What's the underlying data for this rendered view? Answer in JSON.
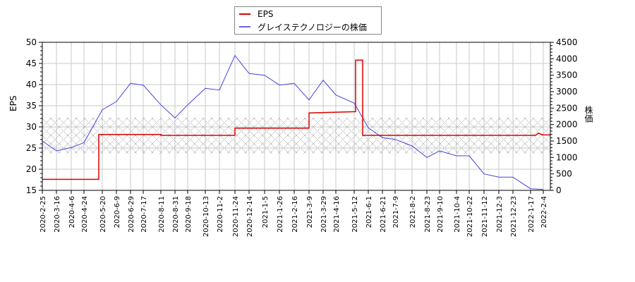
{
  "legend": {
    "items": [
      {
        "label": "EPS",
        "color": "#dd0000"
      },
      {
        "label": "グレイステクノロジーの株価",
        "color": "#4444dd"
      }
    ]
  },
  "axes": {
    "left_label": "EPS",
    "right_label": "株価",
    "left_ticks": [
      15,
      20,
      25,
      30,
      35,
      40,
      45,
      50
    ],
    "right_ticks": [
      0,
      500,
      1000,
      1500,
      2000,
      2500,
      3000,
      3500,
      4000,
      4500
    ]
  },
  "chart_data": {
    "type": "line",
    "title": "",
    "xlabel": "",
    "ylabel": "EPS",
    "y2label": "株価",
    "ylim": [
      15,
      50
    ],
    "y2lim": [
      0,
      4500
    ],
    "grid": true,
    "legend_position": "top-center",
    "hatched_band": {
      "ymin": 23.7,
      "ymax": 32.2,
      "axis": "left"
    },
    "x_tick_labels": [
      "2020-2-25",
      "2020-3-16",
      "2020-4-6",
      "2020-4-24",
      "2020-5-20",
      "2020-6-9",
      "2020-6-29",
      "2020-7-17",
      "2020-8-11",
      "2020-8-31",
      "2020-9-18",
      "2020-10-13",
      "2020-11-2",
      "2020-11-24",
      "2020-12-14",
      "2021-1-5",
      "2021-1-26",
      "2021-2-16",
      "2021-3-9",
      "2021-3-29",
      "2021-4-16",
      "2021-5-12",
      "2021-6-1",
      "2021-6-21",
      "2021-7-9",
      "2021-8-2",
      "2021-8-23",
      "2021-9-10",
      "2021-10-4",
      "2021-10-22",
      "2021-11-12",
      "2021-12-3",
      "2021-12-23",
      "2022-1-17",
      "2022-2-4"
    ],
    "series": [
      {
        "name": "EPS",
        "axis": "left",
        "color": "#dd0000",
        "points": [
          [
            "2020-2-25",
            17.6
          ],
          [
            "2020-5-15",
            17.6
          ],
          [
            "2020-5-15",
            28.2
          ],
          [
            "2020-8-11",
            28.2
          ],
          [
            "2020-8-11",
            28.0
          ],
          [
            "2020-11-24",
            28.0
          ],
          [
            "2020-11-24",
            29.7
          ],
          [
            "2021-3-9",
            29.7
          ],
          [
            "2021-3-9",
            33.3
          ],
          [
            "2021-5-14",
            33.6
          ],
          [
            "2021-5-14",
            45.8
          ],
          [
            "2021-5-24",
            45.8
          ],
          [
            "2021-5-24",
            28.0
          ],
          [
            "2022-1-24",
            28.0
          ],
          [
            "2022-1-28",
            28.5
          ],
          [
            "2022-2-4",
            28.1
          ],
          [
            "2022-2-14",
            28.1
          ]
        ]
      },
      {
        "name": "グレイステクノロジーの株価",
        "axis": "right",
        "color": "#4444dd",
        "points": [
          [
            "2020-2-25",
            1500
          ],
          [
            "2020-3-16",
            1200
          ],
          [
            "2020-4-6",
            1300
          ],
          [
            "2020-4-24",
            1450
          ],
          [
            "2020-5-20",
            2450
          ],
          [
            "2020-6-9",
            2700
          ],
          [
            "2020-6-29",
            3250
          ],
          [
            "2020-7-17",
            3200
          ],
          [
            "2020-8-11",
            2600
          ],
          [
            "2020-8-31",
            2200
          ],
          [
            "2020-9-18",
            2600
          ],
          [
            "2020-10-13",
            3100
          ],
          [
            "2020-11-2",
            3050
          ],
          [
            "2020-11-24",
            4100
          ],
          [
            "2020-12-14",
            3550
          ],
          [
            "2021-1-5",
            3500
          ],
          [
            "2021-1-26",
            3200
          ],
          [
            "2021-2-16",
            3250
          ],
          [
            "2021-3-9",
            2750
          ],
          [
            "2021-3-29",
            3350
          ],
          [
            "2021-4-16",
            2900
          ],
          [
            "2021-5-12",
            2650
          ],
          [
            "2021-6-1",
            1900
          ],
          [
            "2021-6-21",
            1600
          ],
          [
            "2021-7-9",
            1550
          ],
          [
            "2021-8-2",
            1350
          ],
          [
            "2021-8-23",
            1000
          ],
          [
            "2021-9-10",
            1200
          ],
          [
            "2021-10-4",
            1050
          ],
          [
            "2021-10-22",
            1050
          ],
          [
            "2021-11-12",
            500
          ],
          [
            "2021-12-3",
            400
          ],
          [
            "2021-12-23",
            400
          ],
          [
            "2022-1-17",
            50
          ],
          [
            "2022-2-4",
            30
          ]
        ]
      }
    ]
  }
}
